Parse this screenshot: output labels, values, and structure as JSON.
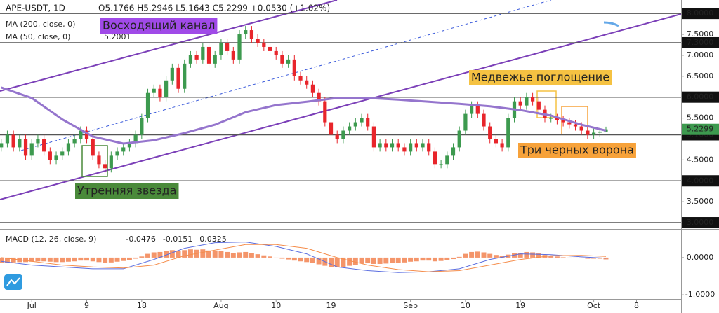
{
  "chart_data": [
    {
      "type": "candlestick",
      "symbol": "APE-USDT, 1D",
      "ohlc_text": "O5.1766 H5.2946 L5.1643 C5.2299 +0.0530 (+1.02%)",
      "up_color": "#3d9a4f",
      "down_color": "#e8252b",
      "xlim": [
        -5.2,
        106.3
      ],
      "ylim": [
        2.85,
        8.32
      ],
      "grid": false,
      "x": [
        -5,
        -4,
        -3,
        -2,
        -1,
        0,
        1,
        2,
        3,
        4,
        5,
        6,
        7,
        8,
        9,
        10,
        11,
        12,
        13,
        14,
        15,
        16,
        17,
        18,
        19,
        20,
        21,
        22,
        23,
        24,
        25,
        26,
        27,
        28,
        29,
        30,
        31,
        32,
        33,
        34,
        35,
        36,
        37,
        38,
        39,
        40,
        41,
        42,
        43,
        44,
        45,
        46,
        47,
        48,
        49,
        50,
        51,
        52,
        53,
        54,
        55,
        56,
        57,
        58,
        59,
        60,
        61,
        62,
        63,
        64,
        65,
        66,
        67,
        68,
        69,
        70,
        71,
        72,
        73,
        74,
        75,
        76,
        77,
        78,
        79,
        80,
        81,
        82,
        83,
        84,
        85,
        86,
        87,
        88,
        89,
        90,
        91,
        92,
        93,
        94
      ],
      "open": [
        4.8,
        4.9,
        5.1,
        4.8,
        5.0,
        4.6,
        4.9,
        5.0,
        4.7,
        4.5,
        4.6,
        4.7,
        4.9,
        5.0,
        5.2,
        5.0,
        4.6,
        4.4,
        4.3,
        4.6,
        4.7,
        4.8,
        4.9,
        5.1,
        5.5,
        6.1,
        6.2,
        6.0,
        6.4,
        6.7,
        6.2,
        6.8,
        7.0,
        6.9,
        7.2,
        6.8,
        7.0,
        7.3,
        7.1,
        6.9,
        7.5,
        7.6,
        7.4,
        7.3,
        7.2,
        7.1,
        7.0,
        6.8,
        6.9,
        6.5,
        6.4,
        6.3,
        6.1,
        5.9,
        5.4,
        5.1,
        5.0,
        5.2,
        5.3,
        5.4,
        5.5,
        5.3,
        4.8,
        4.9,
        4.8,
        4.9,
        4.8,
        4.7,
        4.9,
        4.8,
        4.9,
        4.7,
        4.4,
        4.4,
        4.6,
        4.8,
        5.2,
        5.6,
        5.8,
        5.6,
        5.3,
        5.0,
        4.9,
        4.8,
        5.5,
        5.9,
        5.8,
        6.0,
        5.9,
        5.7,
        5.5,
        5.5,
        5.45,
        5.4,
        5.35,
        5.3,
        5.2,
        5.1,
        5.15,
        5.1766
      ],
      "high": [
        5.0,
        5.2,
        5.2,
        5.1,
        5.1,
        5.0,
        5.1,
        5.1,
        4.8,
        4.7,
        4.8,
        5.0,
        5.1,
        5.3,
        5.3,
        5.1,
        4.7,
        4.5,
        4.7,
        4.8,
        4.9,
        5.0,
        5.2,
        5.6,
        6.2,
        6.3,
        6.3,
        6.5,
        6.8,
        6.8,
        6.9,
        7.1,
        7.1,
        7.3,
        7.3,
        7.1,
        7.4,
        7.4,
        7.2,
        7.6,
        7.7,
        7.7,
        7.5,
        7.4,
        7.3,
        7.2,
        7.1,
        7.0,
        7.0,
        6.6,
        6.5,
        6.4,
        6.2,
        6.0,
        5.5,
        5.2,
        5.3,
        5.4,
        5.5,
        5.6,
        5.6,
        5.4,
        5.0,
        5.0,
        5.0,
        5.0,
        4.9,
        5.0,
        5.0,
        5.0,
        5.0,
        4.8,
        4.5,
        4.7,
        4.9,
        5.3,
        5.7,
        5.9,
        5.9,
        5.7,
        5.4,
        5.1,
        5.0,
        5.6,
        6.0,
        6.0,
        6.1,
        6.1,
        6.0,
        5.8,
        5.6,
        5.6,
        5.55,
        5.5,
        5.45,
        5.4,
        5.3,
        5.25,
        5.25,
        5.2946
      ],
      "low": [
        4.7,
        4.8,
        4.7,
        4.7,
        4.5,
        4.5,
        4.8,
        4.6,
        4.4,
        4.4,
        4.5,
        4.6,
        4.8,
        4.9,
        4.9,
        4.5,
        4.3,
        4.2,
        4.2,
        4.5,
        4.6,
        4.7,
        4.8,
        5.0,
        5.4,
        6.0,
        5.9,
        5.9,
        6.3,
        6.1,
        6.1,
        6.7,
        6.8,
        6.8,
        6.7,
        6.7,
        6.9,
        7.0,
        6.8,
        6.8,
        7.4,
        7.3,
        7.2,
        7.1,
        7.0,
        6.9,
        6.7,
        6.7,
        6.4,
        6.3,
        6.2,
        6.0,
        5.8,
        5.3,
        5.0,
        4.9,
        4.9,
        5.1,
        5.2,
        5.3,
        5.2,
        4.7,
        4.7,
        4.7,
        4.7,
        4.7,
        4.6,
        4.6,
        4.7,
        4.7,
        4.6,
        4.3,
        4.3,
        4.3,
        4.5,
        4.7,
        5.1,
        5.5,
        5.5,
        5.2,
        4.9,
        4.8,
        4.7,
        4.7,
        5.4,
        5.7,
        5.7,
        5.8,
        5.6,
        5.4,
        5.4,
        5.35,
        5.3,
        5.25,
        5.2,
        5.1,
        5.0,
        5.0,
        5.05,
        5.1643
      ],
      "close": [
        4.9,
        5.1,
        4.8,
        5.0,
        4.6,
        4.9,
        5.0,
        4.7,
        4.5,
        4.6,
        4.7,
        4.9,
        5.0,
        5.2,
        5.0,
        4.6,
        4.4,
        4.3,
        4.6,
        4.7,
        4.8,
        4.9,
        5.1,
        5.5,
        6.1,
        6.2,
        6.0,
        6.4,
        6.7,
        6.2,
        6.8,
        7.0,
        6.9,
        7.2,
        6.8,
        7.0,
        7.3,
        7.1,
        6.9,
        7.5,
        7.6,
        7.4,
        7.3,
        7.2,
        7.1,
        7.0,
        6.8,
        6.9,
        6.5,
        6.4,
        6.3,
        6.1,
        5.9,
        5.4,
        5.1,
        5.0,
        5.2,
        5.3,
        5.4,
        5.5,
        5.3,
        4.8,
        4.9,
        4.8,
        4.9,
        4.8,
        4.7,
        4.9,
        4.8,
        4.9,
        4.7,
        4.4,
        4.4,
        4.6,
        4.8,
        5.2,
        5.6,
        5.8,
        5.6,
        5.3,
        5.0,
        4.9,
        4.8,
        5.5,
        5.9,
        5.8,
        6.0,
        5.9,
        5.7,
        5.5,
        5.5,
        5.45,
        5.4,
        5.35,
        5.3,
        5.2,
        5.1,
        5.15,
        5.1766,
        5.2299
      ],
      "last_price_label": "5.2299",
      "last_price_color": "#3d9a4f",
      "yticks": [
        {
          "value": 7.5,
          "label": "7.5000"
        },
        {
          "value": 7,
          "label": "7.0000"
        },
        {
          "value": 6.5,
          "label": "6.5000"
        },
        {
          "value": 5.5,
          "label": "5.5000"
        },
        {
          "value": 4.5,
          "label": "4.5000"
        },
        {
          "value": 3.5,
          "label": "3.5000"
        }
      ],
      "levels": [
        {
          "value": 8,
          "label": "8.0000"
        },
        {
          "value": 7.3,
          "label": "7.3000"
        },
        {
          "value": 6,
          "label": "6.0000"
        },
        {
          "value": 5.1,
          "label": "5.1000"
        },
        {
          "value": 4,
          "label": "4.0000"
        },
        {
          "value": 3,
          "label": "3.0000"
        }
      ],
      "indicators": [
        {
          "name": "MA (200, close, 0)"
        },
        {
          "name": "MA (50, close, 0)",
          "value_label": "5.2001",
          "color": "#9575cd",
          "x": [
            -5,
            0,
            5,
            10,
            15,
            20,
            25,
            30,
            35,
            40,
            45,
            50,
            55,
            60,
            65,
            70,
            75,
            80,
            85,
            90,
            94
          ],
          "values": [
            6.23,
            5.98,
            5.47,
            5.06,
            4.89,
            4.97,
            5.14,
            5.34,
            5.64,
            5.81,
            5.89,
            5.98,
            5.98,
            5.94,
            5.89,
            5.84,
            5.78,
            5.69,
            5.56,
            5.34,
            5.2001
          ]
        }
      ],
      "annotations": [
        {
          "text": "Восходящий канал",
          "color": "#a04ae8"
        },
        {
          "text": "Медвежье поглощение",
          "color": "#f5c242"
        },
        {
          "text": "Три черных ворона",
          "color": "#f7a23a"
        },
        {
          "text": "Утренняя звезда",
          "color": "#4a8a3a"
        }
      ]
    },
    {
      "type": "macd",
      "title": "MACD (12, 26, close, 9)",
      "legend_values": [
        "-0.0476",
        "-0.0151",
        "0.0325"
      ],
      "legend_colors": [
        "#e8552b",
        "#5b6ee0",
        "#f58d4b"
      ],
      "xlim": [
        -5.2,
        106.3
      ],
      "ylim": [
        -1.11,
        0.75
      ],
      "yticks": [
        {
          "value": 0,
          "label": "0.0000"
        },
        {
          "value": -1,
          "label": "-1.0000"
        }
      ],
      "xticks": [
        {
          "value": 0,
          "label": "Jul"
        },
        9,
        18,
        {
          "value": 31,
          "label": "Aug"
        },
        {
          "value": 40,
          "label": "10"
        },
        {
          "value": 49,
          "label": "19"
        },
        {
          "value": 62,
          "label": "Sep"
        },
        {
          "value": 71,
          "label": "10"
        },
        {
          "value": 80,
          "label": "19"
        },
        {
          "value": 92,
          "label": "Oct"
        },
        {
          "value": 99,
          "label": "8"
        }
      ],
      "histogram": {
        "color": "#f4956a",
        "x": [
          -5,
          -4,
          -3,
          -2,
          -1,
          0,
          1,
          2,
          3,
          4,
          5,
          6,
          7,
          8,
          9,
          10,
          11,
          12,
          13,
          14,
          15,
          16,
          17,
          18,
          19,
          20,
          21,
          22,
          23,
          24,
          25,
          26,
          27,
          28,
          29,
          30,
          31,
          32,
          33,
          34,
          35,
          36,
          37,
          38,
          39,
          40,
          41,
          42,
          43,
          44,
          45,
          46,
          47,
          48,
          49,
          50,
          51,
          52,
          53,
          54,
          55,
          56,
          57,
          58,
          59,
          60,
          61,
          62,
          63,
          64,
          65,
          66,
          67,
          68,
          69,
          70,
          71,
          72,
          73,
          74,
          75,
          76,
          77,
          78,
          79,
          80,
          81,
          82,
          83,
          84,
          85,
          86,
          87,
          88,
          89,
          90,
          91,
          92,
          93,
          94
        ],
        "values": [
          -0.15,
          -0.14,
          -0.13,
          -0.12,
          -0.12,
          -0.11,
          -0.1,
          -0.1,
          -0.11,
          -0.12,
          -0.12,
          -0.11,
          -0.1,
          -0.08,
          -0.08,
          -0.1,
          -0.12,
          -0.14,
          -0.13,
          -0.11,
          -0.09,
          -0.06,
          -0.03,
          0.03,
          0.1,
          0.14,
          0.15,
          0.18,
          0.2,
          0.18,
          0.2,
          0.22,
          0.21,
          0.22,
          0.19,
          0.18,
          0.18,
          0.15,
          0.12,
          0.14,
          0.15,
          0.12,
          0.09,
          0.06,
          0.03,
          0.0,
          -0.03,
          -0.05,
          -0.08,
          -0.1,
          -0.12,
          -0.15,
          -0.18,
          -0.22,
          -0.25,
          -0.26,
          -0.25,
          -0.22,
          -0.19,
          -0.16,
          -0.15,
          -0.17,
          -0.17,
          -0.16,
          -0.15,
          -0.14,
          -0.13,
          -0.11,
          -0.1,
          -0.08,
          -0.08,
          -0.1,
          -0.09,
          -0.07,
          -0.04,
          0.02,
          0.1,
          0.15,
          0.16,
          0.14,
          0.1,
          0.07,
          0.04,
          0.08,
          0.13,
          0.13,
          0.15,
          0.14,
          0.11,
          0.07,
          0.05,
          0.03,
          0.01,
          0.0,
          -0.01,
          -0.02,
          -0.03,
          -0.03,
          -0.03,
          -0.0476
        ]
      },
      "lines": [
        {
          "color": "#5b6ee0",
          "x": [
            -5,
            0,
            5,
            10,
            15,
            20,
            25,
            30,
            35,
            40,
            45,
            50,
            55,
            60,
            65,
            70,
            75,
            80,
            85,
            90,
            94
          ],
          "values": [
            -0.1,
            -0.2,
            -0.25,
            -0.3,
            -0.3,
            -0.05,
            0.25,
            0.4,
            0.42,
            0.3,
            0.1,
            -0.25,
            -0.35,
            -0.4,
            -0.38,
            -0.3,
            -0.05,
            0.1,
            0.08,
            0.02,
            -0.0151
          ]
        },
        {
          "color": "#f58d4b",
          "x": [
            -5,
            0,
            5,
            10,
            15,
            20,
            25,
            30,
            35,
            40,
            45,
            50,
            55,
            60,
            65,
            70,
            75,
            80,
            85,
            90,
            94
          ],
          "values": [
            0.0,
            -0.1,
            -0.2,
            -0.25,
            -0.28,
            -0.2,
            0.05,
            0.2,
            0.35,
            0.35,
            0.25,
            0.0,
            -0.2,
            -0.32,
            -0.38,
            -0.35,
            -0.2,
            -0.05,
            0.05,
            0.06,
            0.0325
          ]
        }
      ]
    }
  ]
}
